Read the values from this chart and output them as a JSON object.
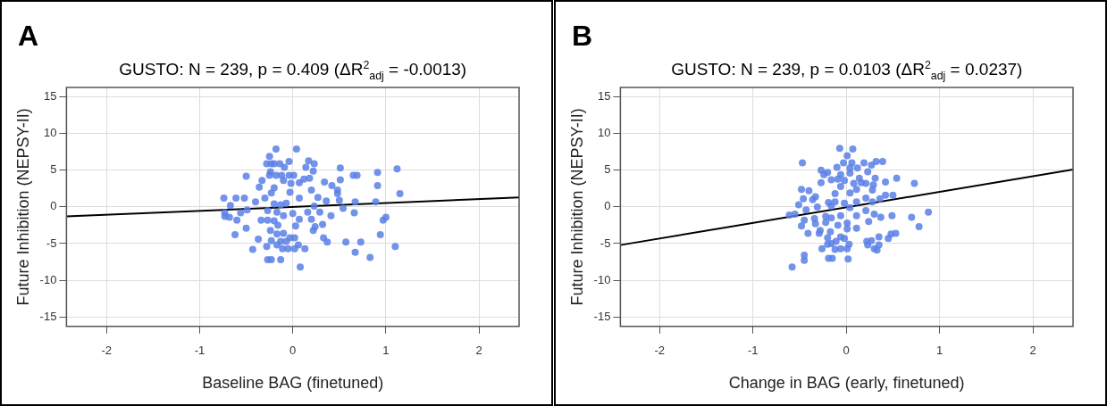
{
  "chart_data": [
    {
      "type": "scatter",
      "title": "GUSTO: N = 239, p = 0.409 (ΔR$^{2}$$_{adj}$ = -0.0013)",
      "xlabel": "Baseline BAG (finetuned)",
      "ylabel": "Future Inhibition (NEPSY-II)",
      "annotations": [
        "A"
      ],
      "xlim": [
        -2.43,
        2.43
      ],
      "ylim": [
        -16.3,
        16.3
      ],
      "xticks": [
        -2,
        -1,
        0,
        1,
        2
      ],
      "yticks": [
        -15,
        -10,
        -5,
        0,
        5,
        10,
        15
      ],
      "grid": true,
      "marker": "circle",
      "series": [
        {
          "type": "scatter",
          "color": "#5b7fe6",
          "x": [
            -0.18,
            0.04,
            -0.25,
            -0.28,
            -0.23,
            -0.2,
            -0.14,
            -0.04,
            -0.09,
            0.17,
            0.23,
            0.14,
            0.22,
            0.51,
            0.91,
            1.12,
            -0.5,
            -0.24,
            -0.25,
            -0.18,
            -0.12,
            -0.04,
            0.01,
            0.65,
            0.69,
            -0.33,
            -0.1,
            0.12,
            0.18,
            0.51,
            -0.02,
            0.07,
            0.34,
            0.42,
            0.91,
            -0.36,
            -0.2,
            0.48,
            0.2,
            -0.23,
            -0.03,
            1.15,
            0.48,
            -0.74,
            -0.61,
            -0.52,
            -0.3,
            0.07,
            0.27,
            -0.4,
            0.5,
            0.67,
            0.89,
            0.36,
            -0.67,
            -0.2,
            -0.13,
            -0.07,
            0.23,
            0.54,
            -0.49,
            -0.56,
            -0.73,
            -0.73,
            -0.68,
            -0.27,
            -0.17,
            0,
            0.16,
            0.29,
            0.66,
            0.41,
            -0.1,
            1.0,
            0.97,
            -0.6,
            -0.34,
            -0.27,
            -0.2,
            0.07,
            0.2,
            0.32,
            -0.16,
            0.03,
            -0.5,
            0.24,
            -0.24,
            0.22,
            -0.62,
            -0.17,
            -0.1,
            0.94,
            -0.37,
            -0.03,
            0.02,
            0.33,
            -0.23,
            -0.13,
            -0.07,
            0.37,
            0.57,
            0.73,
            -0.28,
            -0.17,
            0.06,
            -0.43,
            -0.11,
            -0.05,
            0.02,
            0.13,
            1.1,
            0.67,
            0.83,
            -0.27,
            -0.23,
            -0.13,
            0.08
          ],
          "values": [
            7.9,
            7.9,
            6.9,
            5.9,
            5.9,
            5.9,
            5.9,
            6.2,
            5.4,
            6.3,
            5.9,
            5.4,
            4.9,
            5.3,
            4.7,
            5.2,
            4.2,
            4.8,
            4.3,
            4.3,
            4.3,
            4.3,
            4.3,
            4.3,
            4.3,
            3.6,
            3.6,
            3.8,
            3.9,
            3.7,
            3.2,
            3.3,
            3.4,
            2.9,
            2.9,
            2.7,
            2.6,
            2.3,
            2.3,
            1.9,
            2.0,
            1.8,
            1.8,
            1.2,
            1.2,
            1.2,
            1.2,
            1.2,
            1.3,
            0.7,
            0.9,
            0.7,
            0.7,
            0.8,
            0.2,
            0.4,
            0.3,
            0.5,
            0.1,
            -0.2,
            -0.4,
            -0.8,
            -0.8,
            -1.3,
            -1.4,
            -0.5,
            -0.7,
            -0.9,
            -0.7,
            -0.7,
            -0.8,
            -1.2,
            -1.2,
            -1.4,
            -1.8,
            -1.8,
            -1.8,
            -1.8,
            -1.9,
            -1.7,
            -1.7,
            -2.4,
            -2.5,
            -2.6,
            -2.9,
            -2.7,
            -3.2,
            -3.2,
            -3.8,
            -3.7,
            -3.6,
            -3.8,
            -4.4,
            -4.2,
            -4.2,
            -4.2,
            -4.6,
            -4.7,
            -4.7,
            -4.8,
            -4.8,
            -4.8,
            -5.4,
            -5.2,
            -5.2,
            -5.8,
            -5.7,
            -5.7,
            -5.7,
            -5.7,
            -5.4,
            -6.2,
            -6.9,
            -7.2,
            -7.2,
            -7.2,
            -8.2
          ]
        },
        {
          "type": "line",
          "color": "#000000",
          "marker": "none",
          "x": [
            -2.43,
            2.43
          ],
          "values": [
            -1.3,
            1.3
          ]
        }
      ]
    },
    {
      "type": "scatter",
      "title": "GUSTO: N = 239, p = 0.0103 (ΔR$^{2}$$_{adj}$ = 0.0237)",
      "xlabel": "Change in BAG (early, finetuned)",
      "ylabel": "Future Inhibition (NEPSY-II)",
      "annotations": [
        "B"
      ],
      "xlim": [
        -2.42,
        2.43
      ],
      "ylim": [
        -16.3,
        16.3
      ],
      "xticks": [
        -2,
        -1,
        0,
        1,
        2
      ],
      "yticks": [
        -15,
        -10,
        -5,
        0,
        5,
        10,
        15
      ],
      "grid": true,
      "marker": "circle",
      "series": [
        {
          "type": "scatter",
          "color": "#5b7fe6",
          "x": [
            -0.07,
            0.07,
            0.01,
            -0.47,
            -0.03,
            0.06,
            0.19,
            0.27,
            0.32,
            0.39,
            -0.1,
            0.04,
            0.12,
            -0.27,
            -0.2,
            -0.24,
            0.23,
            -0.06,
            0.04,
            -0.16,
            -0.09,
            -0.02,
            0.14,
            0.31,
            0.54,
            0.42,
            0.73,
            -0.27,
            0.08,
            0.16,
            0.21,
            0.29,
            -0.06,
            -0.48,
            -0.4,
            0.11,
            0.28,
            -0.12,
            0.04,
            0.42,
            0.5,
            -0.33,
            -0.46,
            -0.36,
            0.21,
            0.36,
            -0.19,
            -0.12,
            -0.02,
            0.11,
            0.28,
            -0.51,
            -0.31,
            -0.16,
            0.04,
            0.21,
            -0.43,
            -0.61,
            -0.55,
            0.88,
            0.49,
            0.7,
            0.37,
            0.3,
            -0.45,
            -0.34,
            -0.22,
            -0.16,
            -0.06,
            0.11,
            0.01,
            0.24,
            -0.48,
            -0.33,
            -0.22,
            -0.09,
            0.78,
            0.11,
            0.01,
            -0.28,
            -0.17,
            -0.41,
            -0.29,
            0.48,
            0.53,
            -0.2,
            -0.06,
            -0.02,
            0.35,
            0.45,
            -0.11,
            0.22,
            0.27,
            -0.2,
            -0.16,
            0.03,
            0.23,
            0.35,
            -0.26,
            -0.12,
            -0.06,
            0.01,
            0.3,
            0.33,
            -0.45,
            -0.45,
            -0.19,
            -0.15,
            0.02,
            -0.58
          ],
          "values": [
            8.0,
            7.9,
            7.0,
            6.0,
            6.0,
            6.0,
            6.0,
            5.7,
            6.2,
            6.2,
            5.4,
            5.3,
            5.3,
            5.0,
            4.7,
            4.4,
            4.8,
            4.4,
            4.6,
            3.7,
            3.8,
            3.6,
            3.9,
            3.9,
            3.9,
            3.4,
            3.2,
            3.3,
            3.2,
            3.3,
            3.2,
            3.0,
            2.8,
            2.4,
            2.2,
            2.4,
            2.3,
            1.8,
            1.9,
            1.6,
            1.6,
            1.4,
            1.1,
            1.0,
            1.2,
            1.1,
            0.6,
            0.7,
            0.5,
            0.7,
            0.7,
            0.3,
            0,
            0.1,
            -0.1,
            -0.5,
            -0.4,
            -1.1,
            -1.0,
            -0.7,
            -1.2,
            -1.4,
            -1.4,
            -1.0,
            -1.8,
            -1.6,
            -1.3,
            -1.5,
            -1.2,
            -1.2,
            -2.2,
            -2.0,
            -2.6,
            -2.3,
            -2.1,
            -2.5,
            -2.7,
            -2.9,
            -3.0,
            -3.2,
            -3.4,
            -3.6,
            -3.6,
            -3.7,
            -3.6,
            -4.2,
            -4.1,
            -4.3,
            -4.1,
            -4.3,
            -4.7,
            -4.7,
            -4.6,
            -5.1,
            -5.0,
            -5.1,
            -5.2,
            -5.2,
            -5.7,
            -5.8,
            -5.7,
            -5.7,
            -5.7,
            -5.9,
            -6.6,
            -7.3,
            -7.0,
            -7.0,
            -7.1,
            -8.2
          ]
        },
        {
          "type": "line",
          "color": "#000000",
          "marker": "none",
          "x": [
            -2.42,
            2.43
          ],
          "values": [
            -5.2,
            5.1
          ]
        }
      ]
    }
  ]
}
